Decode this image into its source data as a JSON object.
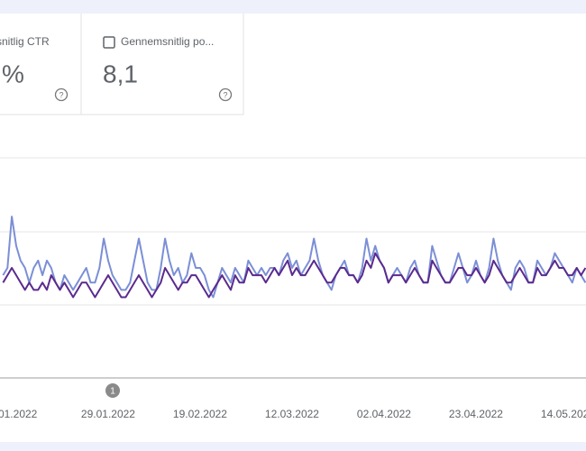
{
  "cards": [
    {
      "title": "snitlig CTR",
      "value": "%"
    },
    {
      "title": "Gennemsnitlig po...",
      "value": "8,1"
    }
  ],
  "annotation": "1",
  "chart_data": {
    "type": "line",
    "categories": [
      null,
      null,
      null,
      ".01.2022",
      null,
      null,
      null,
      null,
      null,
      null,
      null,
      null,
      null,
      null,
      null,
      null,
      null,
      null,
      null,
      null,
      null,
      null,
      null,
      null,
      "29.01.2022",
      null,
      null,
      null,
      null,
      null,
      null,
      null,
      null,
      null,
      null,
      null,
      null,
      null,
      null,
      null,
      null,
      null,
      null,
      null,
      null,
      "19.02.2022",
      null,
      null,
      null,
      null,
      null,
      null,
      null,
      null,
      null,
      null,
      null,
      null,
      null,
      null,
      null,
      null,
      null,
      null,
      null,
      null,
      "12.03.2022",
      null,
      null,
      null,
      null,
      null,
      null,
      null,
      null,
      null,
      null,
      null,
      null,
      null,
      null,
      null,
      null,
      null,
      null,
      null,
      null,
      "02.04.2022",
      null,
      null,
      null,
      null,
      null,
      null,
      null,
      null,
      null,
      null,
      null,
      null,
      null,
      null,
      null,
      null,
      null,
      null,
      null,
      null,
      "23.04.2022",
      null,
      null,
      null,
      null,
      null,
      null,
      null,
      null,
      null,
      null,
      null,
      null,
      null,
      null,
      null,
      null,
      null,
      null,
      null,
      null,
      "14.05.2022",
      null,
      null,
      null,
      null
    ],
    "series": [
      {
        "color": "#7b8fd6",
        "values": [
          1.4,
          1.5,
          2.2,
          1.8,
          1.6,
          1.5,
          1.3,
          1.5,
          1.6,
          1.4,
          1.6,
          1.5,
          1.3,
          1.2,
          1.4,
          1.3,
          1.2,
          1.3,
          1.4,
          1.5,
          1.3,
          1.3,
          1.5,
          1.9,
          1.6,
          1.4,
          1.3,
          1.2,
          1.2,
          1.3,
          1.6,
          1.9,
          1.6,
          1.3,
          1.2,
          1.2,
          1.5,
          1.9,
          1.6,
          1.4,
          1.5,
          1.3,
          1.4,
          1.7,
          1.5,
          1.5,
          1.4,
          1.2,
          1.1,
          1.3,
          1.5,
          1.4,
          1.3,
          1.5,
          1.4,
          1.3,
          1.6,
          1.5,
          1.4,
          1.5,
          1.4,
          1.5,
          1.5,
          1.4,
          1.6,
          1.7,
          1.5,
          1.6,
          1.4,
          1.5,
          1.6,
          1.9,
          1.6,
          1.4,
          1.3,
          1.2,
          1.4,
          1.5,
          1.6,
          1.4,
          1.4,
          1.3,
          1.5,
          1.9,
          1.6,
          1.8,
          1.6,
          1.5,
          1.3,
          1.4,
          1.5,
          1.4,
          1.3,
          1.5,
          1.6,
          1.4,
          1.3,
          1.3,
          1.8,
          1.6,
          1.4,
          1.3,
          1.3,
          1.5,
          1.7,
          1.5,
          1.3,
          1.4,
          1.6,
          1.4,
          1.3,
          1.5,
          1.9,
          1.6,
          1.4,
          1.3,
          1.2,
          1.5,
          1.6,
          1.5,
          1.3,
          1.3,
          1.6,
          1.5,
          1.4,
          1.5,
          1.7,
          1.6,
          1.5,
          1.4,
          1.3,
          1.5,
          1.4,
          1.3
        ]
      },
      {
        "color": "#5b2a8e",
        "values": [
          1.3,
          1.4,
          1.5,
          1.4,
          1.3,
          1.2,
          1.3,
          1.2,
          1.2,
          1.3,
          1.2,
          1.4,
          1.3,
          1.2,
          1.3,
          1.2,
          1.1,
          1.2,
          1.3,
          1.3,
          1.2,
          1.1,
          1.2,
          1.3,
          1.4,
          1.3,
          1.2,
          1.1,
          1.1,
          1.2,
          1.3,
          1.4,
          1.3,
          1.2,
          1.1,
          1.2,
          1.3,
          1.5,
          1.4,
          1.3,
          1.2,
          1.3,
          1.3,
          1.4,
          1.4,
          1.3,
          1.2,
          1.1,
          1.2,
          1.3,
          1.4,
          1.3,
          1.2,
          1.4,
          1.3,
          1.3,
          1.5,
          1.4,
          1.4,
          1.4,
          1.3,
          1.4,
          1.5,
          1.4,
          1.5,
          1.6,
          1.4,
          1.5,
          1.4,
          1.4,
          1.5,
          1.6,
          1.5,
          1.4,
          1.3,
          1.3,
          1.4,
          1.5,
          1.5,
          1.4,
          1.4,
          1.3,
          1.4,
          1.6,
          1.5,
          1.7,
          1.6,
          1.5,
          1.3,
          1.4,
          1.4,
          1.4,
          1.3,
          1.4,
          1.5,
          1.4,
          1.3,
          1.3,
          1.6,
          1.5,
          1.4,
          1.3,
          1.3,
          1.4,
          1.5,
          1.5,
          1.4,
          1.4,
          1.5,
          1.4,
          1.3,
          1.4,
          1.6,
          1.5,
          1.4,
          1.3,
          1.3,
          1.4,
          1.5,
          1.4,
          1.3,
          1.3,
          1.5,
          1.4,
          1.4,
          1.5,
          1.6,
          1.5,
          1.5,
          1.4,
          1.4,
          1.5,
          1.4,
          1.5
        ]
      }
    ],
    "ylim": [
      0,
      3
    ]
  }
}
